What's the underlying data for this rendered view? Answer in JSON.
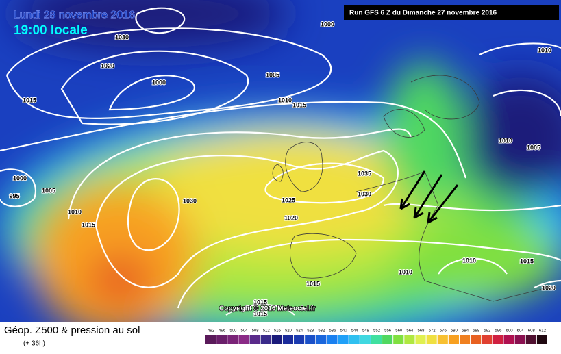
{
  "header": {
    "date": "Lundi 28 novembre 2016",
    "time": "19:00 locale",
    "run": "Run GFS 6 Z du Dimanche 27 novembre 2016",
    "copyright": "Copyright © 2016 Meteociel.fr"
  },
  "isobars": [
    1030,
    1000,
    1020,
    1000,
    1005,
    1010,
    1015,
    1015,
    1010,
    1010,
    1005,
    1000,
    1005,
    995,
    1010,
    1015,
    1030,
    1025,
    1020,
    1035,
    1030,
    1010,
    1015,
    1010,
    1015,
    1020,
    1015,
    1015
  ],
  "legend": {
    "title": "Géop. Z500 & pression au sol",
    "subtitle": "(+ 36h)",
    "ticks": [
      492,
      496,
      500,
      504,
      508,
      512,
      516,
      520,
      524,
      528,
      532,
      536,
      540,
      544,
      548,
      552,
      556,
      560,
      564,
      568,
      572,
      576,
      580,
      584,
      588,
      592,
      596,
      600,
      604,
      608,
      612
    ],
    "colors": [
      "#5a1a5a",
      "#6a1f6a",
      "#7a2478",
      "#8a2a86",
      "#5a2a8a",
      "#3a2a8a",
      "#1a1a7a",
      "#1a2a9a",
      "#1a3ab0",
      "#1a50c8",
      "#1a66dc",
      "#1a80f0",
      "#20a0f8",
      "#30c0f0",
      "#40d8e0",
      "#40e0a0",
      "#50d860",
      "#80e040",
      "#b0e840",
      "#e0f050",
      "#f0e040",
      "#f8c030",
      "#f8a020",
      "#f08020",
      "#e86020",
      "#e04030",
      "#d02040",
      "#b01050",
      "#8a1050",
      "#501030",
      "#200810"
    ]
  }
}
